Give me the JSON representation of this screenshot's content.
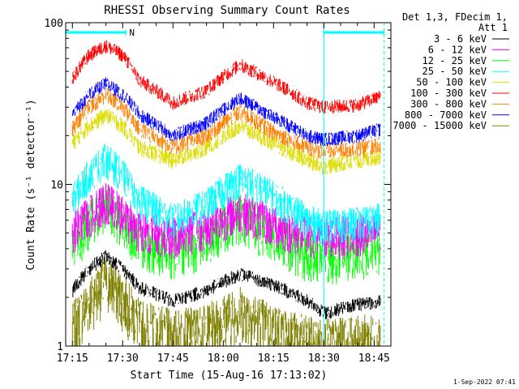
{
  "chart_data": {
    "type": "line",
    "title": "RHESSI Observing Summary Count Rates",
    "xlabel": "Start Time (15-Aug-16 17:13:02)",
    "ylabel": "Count Rate (s⁻¹ detector⁻¹)",
    "y_scale": "log",
    "ylim": [
      1,
      100
    ],
    "xlim": [
      "17:13",
      "18:50"
    ],
    "x_ticks": [
      "17:15",
      "17:30",
      "17:45",
      "18:00",
      "18:15",
      "18:30",
      "18:45"
    ],
    "y_ticks": [
      "1",
      "10",
      "100"
    ],
    "legend_title": "Det 1,3, FDecim 1,",
    "legend_subtitle": "Att 1",
    "legend_position": "right",
    "series": [
      {
        "name": "3 - 6 keV",
        "color": "#000000",
        "times": [
          "17:15",
          "17:20",
          "17:25",
          "17:30",
          "17:35",
          "17:45",
          "17:55",
          "18:05",
          "18:15",
          "18:25",
          "18:30",
          "18:40",
          "18:47"
        ],
        "values": [
          2.2,
          3.0,
          3.6,
          3.0,
          2.3,
          1.9,
          2.2,
          2.8,
          2.4,
          1.9,
          1.6,
          1.8,
          1.9
        ]
      },
      {
        "name": "6 - 12 keV",
        "color": "#ff00ff",
        "times": [
          "17:15",
          "17:20",
          "17:25",
          "17:30",
          "17:35",
          "17:45",
          "17:55",
          "18:05",
          "18:15",
          "18:25",
          "18:30",
          "18:40",
          "18:47"
        ],
        "values": [
          5.0,
          6.5,
          8.0,
          6.5,
          5.3,
          4.8,
          5.5,
          7.0,
          5.6,
          4.9,
          4.8,
          5.0,
          5.2
        ]
      },
      {
        "name": "12 - 25 keV",
        "color": "#00ff00",
        "times": [
          "17:15",
          "17:20",
          "17:25",
          "17:30",
          "17:35",
          "17:45",
          "17:55",
          "18:05",
          "18:15",
          "18:25",
          "18:30",
          "18:40",
          "18:47"
        ],
        "values": [
          4.0,
          6.0,
          7.5,
          6.0,
          4.5,
          3.8,
          4.6,
          6.5,
          4.8,
          3.8,
          3.6,
          3.9,
          4.2
        ]
      },
      {
        "name": "25 - 50 keV",
        "color": "#00ffff",
        "times": [
          "17:15",
          "17:20",
          "17:25",
          "17:30",
          "17:35",
          "17:45",
          "17:55",
          "18:05",
          "18:15",
          "18:25",
          "18:30",
          "18:40",
          "18:47"
        ],
        "values": [
          8.0,
          11.5,
          14.5,
          11.5,
          8.0,
          6.0,
          7.5,
          11.0,
          8.5,
          6.0,
          5.6,
          5.8,
          6.2
        ]
      },
      {
        "name": "50 - 100 keV",
        "color": "#dddd00",
        "times": [
          "17:15",
          "17:20",
          "17:25",
          "17:30",
          "17:35",
          "17:45",
          "17:55",
          "18:05",
          "18:15",
          "18:25",
          "18:30",
          "18:40",
          "18:47"
        ],
        "values": [
          18,
          23,
          27,
          23,
          17,
          14,
          17,
          23,
          18,
          14,
          13,
          14,
          15
        ]
      },
      {
        "name": "100 - 300 keV",
        "color": "#ff0000",
        "times": [
          "17:15",
          "17:20",
          "17:25",
          "17:30",
          "17:35",
          "17:45",
          "17:55",
          "18:05",
          "18:15",
          "18:25",
          "18:30",
          "18:40",
          "18:47"
        ],
        "values": [
          45,
          63,
          72,
          63,
          44,
          32,
          38,
          55,
          43,
          32,
          30,
          31,
          35
        ]
      },
      {
        "name": "300 - 800 keV",
        "color": "#ff7f00",
        "times": [
          "17:15",
          "17:20",
          "17:25",
          "17:30",
          "17:35",
          "17:45",
          "17:55",
          "18:05",
          "18:15",
          "18:25",
          "18:30",
          "18:40",
          "18:47"
        ],
        "values": [
          22,
          30,
          36,
          30,
          22,
          17,
          20,
          28,
          21,
          17,
          16,
          16.5,
          17.5
        ]
      },
      {
        "name": "800 - 7000 keV",
        "color": "#0000ff",
        "times": [
          "17:15",
          "17:20",
          "17:25",
          "17:30",
          "17:35",
          "17:45",
          "17:55",
          "18:05",
          "18:15",
          "18:25",
          "18:30",
          "18:40",
          "18:47"
        ],
        "values": [
          27,
          36,
          42,
          36,
          27,
          20,
          24,
          34,
          26,
          20,
          19,
          20,
          22
        ]
      },
      {
        "name": "7000 - 15000 keV",
        "color": "#808000",
        "times": [
          "17:15",
          "17:20",
          "17:25",
          "17:30",
          "17:35",
          "17:45",
          "17:55",
          "18:05",
          "18:15",
          "18:25",
          "18:30",
          "18:40",
          "18:47"
        ],
        "values": [
          1.3,
          1.9,
          2.6,
          2.0,
          1.4,
          1.2,
          1.3,
          1.7,
          1.3,
          1.1,
          1.05,
          1.1,
          1.15
        ]
      }
    ],
    "annotations": [
      {
        "label": "N",
        "start": "17:13",
        "end": "17:31",
        "color": "#00ffff"
      },
      {
        "label": "",
        "start": "18:30",
        "end": "18:48",
        "color": "#00ffff"
      }
    ],
    "markers": [
      {
        "time": "18:30",
        "style": "solid",
        "color": "#00ffff"
      },
      {
        "time": "18:48",
        "style": "dashed",
        "color": "#00ffff"
      }
    ]
  },
  "footer": {
    "timestamp": "1-Sep-2022 07:41"
  }
}
